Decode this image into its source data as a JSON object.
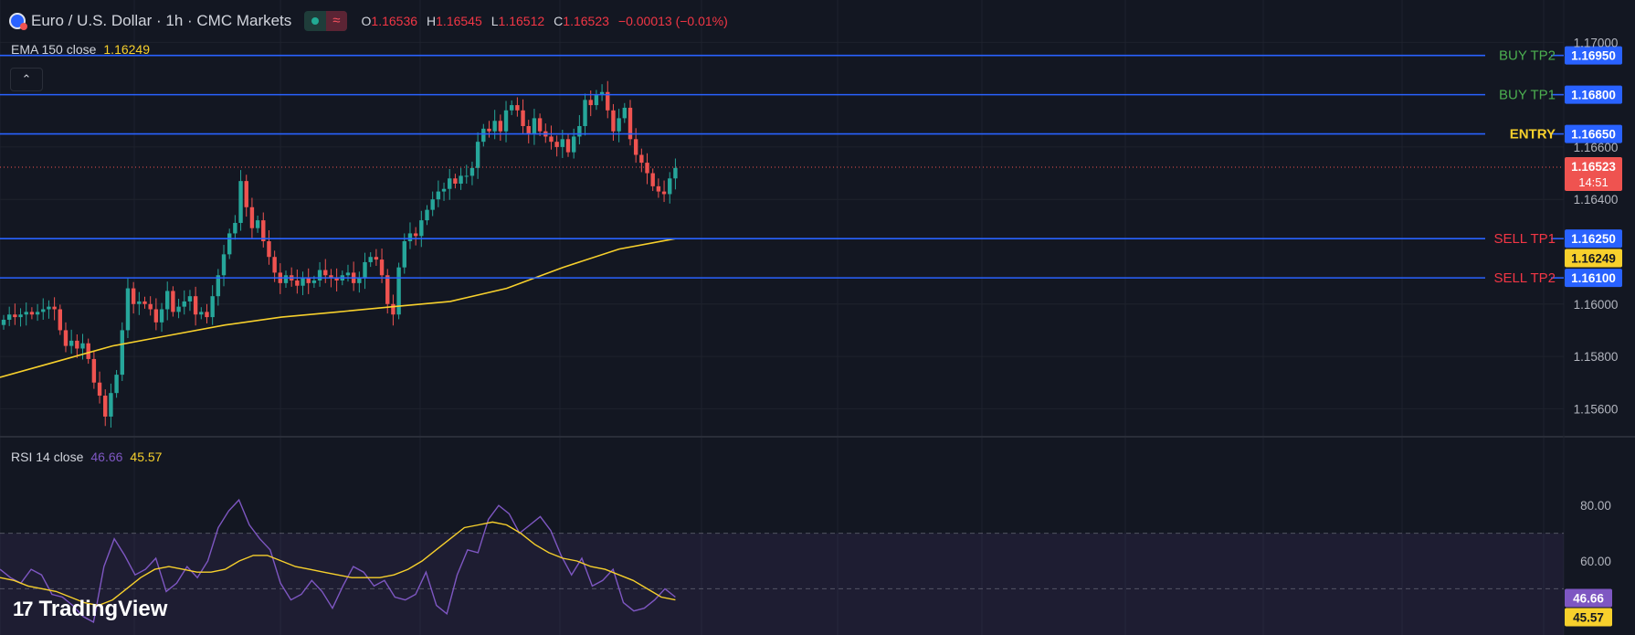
{
  "header": {
    "symbol_title": "Euro / U.S. Dollar · 1h · CMC Markets",
    "wave_glyph": "≈",
    "ohlc": [
      {
        "k": "O",
        "v": "1.16536"
      },
      {
        "k": "H",
        "v": "1.16545"
      },
      {
        "k": "L",
        "v": "1.16512"
      },
      {
        "k": "C",
        "v": "1.16523"
      },
      {
        "k": "",
        "v": "−0.00013 (−0.01%)"
      }
    ],
    "collapse_glyph": "⌃"
  },
  "ema": {
    "label": "EMA 150 close",
    "value": "1.16249"
  },
  "rsi": {
    "label": "RSI 14 close",
    "value": "46.66",
    "ma_value": "45.57"
  },
  "brand": {
    "name": "TradingView",
    "mark": "17"
  },
  "colors": {
    "bg": "#131722",
    "up": "#26a69a",
    "down": "#ef5350",
    "level": "#2962ff",
    "ema": "#f7d02c",
    "rsi": "#7e57c2",
    "buy": "#4caf50",
    "entry": "#f7d02c",
    "sell": "#f23645"
  },
  "chart_data": {
    "type": "candlestick",
    "instrument": "EUR/USD",
    "interval": "1h",
    "price_axis": {
      "min": 1.155,
      "max": 1.1705,
      "ticks": [
        "1.17000",
        "1.16600",
        "1.16400",
        "1.16000",
        "1.15800",
        "1.15600"
      ]
    },
    "levels": [
      {
        "label": "BUY TP2",
        "price": 1.1695,
        "tag": "1.16950",
        "kind": "buy"
      },
      {
        "label": "BUY TP1",
        "price": 1.168,
        "tag": "1.16800",
        "kind": "buy"
      },
      {
        "label": "ENTRY",
        "price": 1.1665,
        "tag": "1.16650",
        "kind": "entry"
      },
      {
        "label": "SELL TP1",
        "price": 1.1625,
        "tag": "1.16250",
        "kind": "sell"
      },
      {
        "label": "SELL TP2",
        "price": 1.161,
        "tag": "1.16100",
        "kind": "sell"
      }
    ],
    "last_price": {
      "price": 1.16523,
      "tag": "1.16523",
      "countdown": "14:51"
    },
    "ema_tag": {
      "price": 1.16249,
      "tag": "1.16249"
    },
    "closes": [
      1.1594,
      1.1596,
      1.1595,
      1.1596,
      1.1597,
      1.1596,
      1.1597,
      1.1598,
      1.1599,
      1.1598,
      1.159,
      1.1584,
      1.1586,
      1.1583,
      1.1585,
      1.1579,
      1.157,
      1.1565,
      1.1557,
      1.1566,
      1.1573,
      1.159,
      1.1606,
      1.16,
      1.1601,
      1.16,
      1.1598,
      1.1593,
      1.1598,
      1.1605,
      1.1597,
      1.1599,
      1.1601,
      1.1603,
      1.1596,
      1.1597,
      1.1595,
      1.1603,
      1.1611,
      1.1619,
      1.1627,
      1.1631,
      1.1647,
      1.1637,
      1.1629,
      1.1632,
      1.1624,
      1.1618,
      1.1612,
      1.1608,
      1.1611,
      1.1609,
      1.1607,
      1.161,
      1.1608,
      1.1609,
      1.1613,
      1.1611,
      1.161,
      1.1609,
      1.1611,
      1.1612,
      1.1608,
      1.161,
      1.1616,
      1.1618,
      1.1617,
      1.1611,
      1.16,
      1.1596,
      1.1614,
      1.1624,
      1.1627,
      1.1626,
      1.1632,
      1.1636,
      1.164,
      1.1643,
      1.1644,
      1.1648,
      1.1646,
      1.1649,
      1.1649,
      1.1652,
      1.1662,
      1.1667,
      1.1666,
      1.167,
      1.1666,
      1.1674,
      1.1676,
      1.1674,
      1.1668,
      1.1665,
      1.1671,
      1.1666,
      1.1664,
      1.1662,
      1.166,
      1.1663,
      1.1658,
      1.1664,
      1.1668,
      1.1678,
      1.1676,
      1.168,
      1.1681,
      1.1674,
      1.1666,
      1.1671,
      1.1675,
      1.1663,
      1.1657,
      1.1654,
      1.165,
      1.1645,
      1.1643,
      1.1642,
      1.1648,
      1.1652
    ],
    "ema_values": [
      1.1572,
      1.1578,
      1.1584,
      1.1588,
      1.1592,
      1.1595,
      1.1597,
      1.1599,
      1.1601,
      1.1606,
      1.1614,
      1.1621,
      1.1625
    ],
    "rsi_axis": {
      "min": 35,
      "max": 85,
      "ticks": [
        "80.00",
        "60.00"
      ],
      "band": [
        30,
        70
      ],
      "mid": 50
    },
    "rsi_values": [
      57,
      54,
      52,
      57,
      55,
      48,
      47,
      44,
      40,
      38,
      58,
      68,
      62,
      55,
      57,
      61,
      49,
      52,
      58,
      54,
      60,
      72,
      78,
      82,
      73,
      68,
      64,
      52,
      46,
      48,
      53,
      49,
      43,
      51,
      58,
      56,
      51,
      53,
      47,
      46,
      48,
      56,
      44,
      41,
      55,
      64,
      63,
      75,
      80,
      77,
      70,
      73,
      76,
      71,
      62,
      55,
      61,
      51,
      53,
      57,
      45,
      42,
      43,
      46,
      50,
      47
    ],
    "rsi_ma_values": [
      54,
      53,
      51,
      50,
      49,
      47,
      45,
      44,
      46,
      50,
      54,
      57,
      58,
      57,
      56,
      56,
      57,
      60,
      62,
      62,
      60,
      58,
      57,
      56,
      55,
      54,
      54,
      54,
      55,
      57,
      60,
      64,
      68,
      72,
      73,
      74,
      73,
      70,
      66,
      63,
      61,
      60,
      58,
      57,
      55,
      53,
      50,
      47,
      46
    ]
  }
}
